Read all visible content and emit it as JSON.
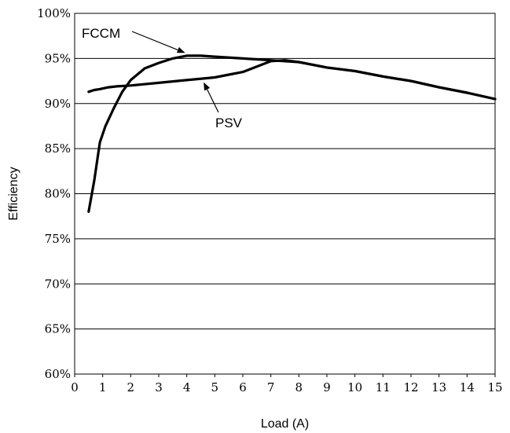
{
  "chart_data": {
    "type": "line",
    "xlabel": "Load (A)",
    "ylabel": "Efficiency",
    "xlim": [
      0,
      15
    ],
    "ylim": [
      60,
      100
    ],
    "x_ticks": [
      "0",
      "1",
      "2",
      "3",
      "4",
      "5",
      "6",
      "7",
      "8",
      "9",
      "10",
      "11",
      "12",
      "13",
      "14",
      "15"
    ],
    "y_ticks": [
      "60%",
      "65%",
      "70%",
      "75%",
      "80%",
      "85%",
      "90%",
      "95%",
      "100%"
    ],
    "grid": "horizontal",
    "series": [
      {
        "name": "FCCM",
        "x": [
          0.5,
          0.7,
          0.9,
          1.1,
          1.4,
          1.7,
          2.0,
          2.5,
          3.0,
          3.5,
          4.0,
          4.5,
          5.0,
          6.0,
          7.0,
          8.0,
          9.0,
          10.0,
          11.0,
          12.0,
          13.0,
          14.0,
          15.0
        ],
        "values": [
          78.0,
          81.5,
          85.7,
          87.5,
          89.5,
          91.3,
          92.6,
          93.9,
          94.5,
          95.0,
          95.3,
          95.3,
          95.2,
          95.0,
          94.8,
          94.6,
          94.0,
          93.6,
          93.0,
          92.5,
          91.8,
          91.2,
          90.5
        ]
      },
      {
        "name": "PSV",
        "x": [
          0.5,
          0.7,
          0.9,
          1.2,
          1.5,
          2.0,
          3.0,
          4.0,
          5.0,
          5.5,
          6.0,
          6.5,
          7.0,
          7.5,
          8.0,
          9.0,
          10.0,
          11.0,
          12.0,
          13.0,
          14.0,
          15.0
        ],
        "values": [
          91.3,
          91.5,
          91.6,
          91.8,
          91.9,
          92.0,
          92.3,
          92.6,
          92.9,
          93.2,
          93.5,
          94.1,
          94.7,
          94.8,
          94.6,
          94.0,
          93.6,
          93.0,
          92.5,
          91.8,
          91.2,
          90.5
        ]
      }
    ],
    "annotations": [
      {
        "label": "FCCM",
        "target_x": 4.0,
        "target_y": 95.3
      },
      {
        "label": "PSV",
        "target_x": 4.7,
        "target_y": 92.8
      }
    ]
  }
}
